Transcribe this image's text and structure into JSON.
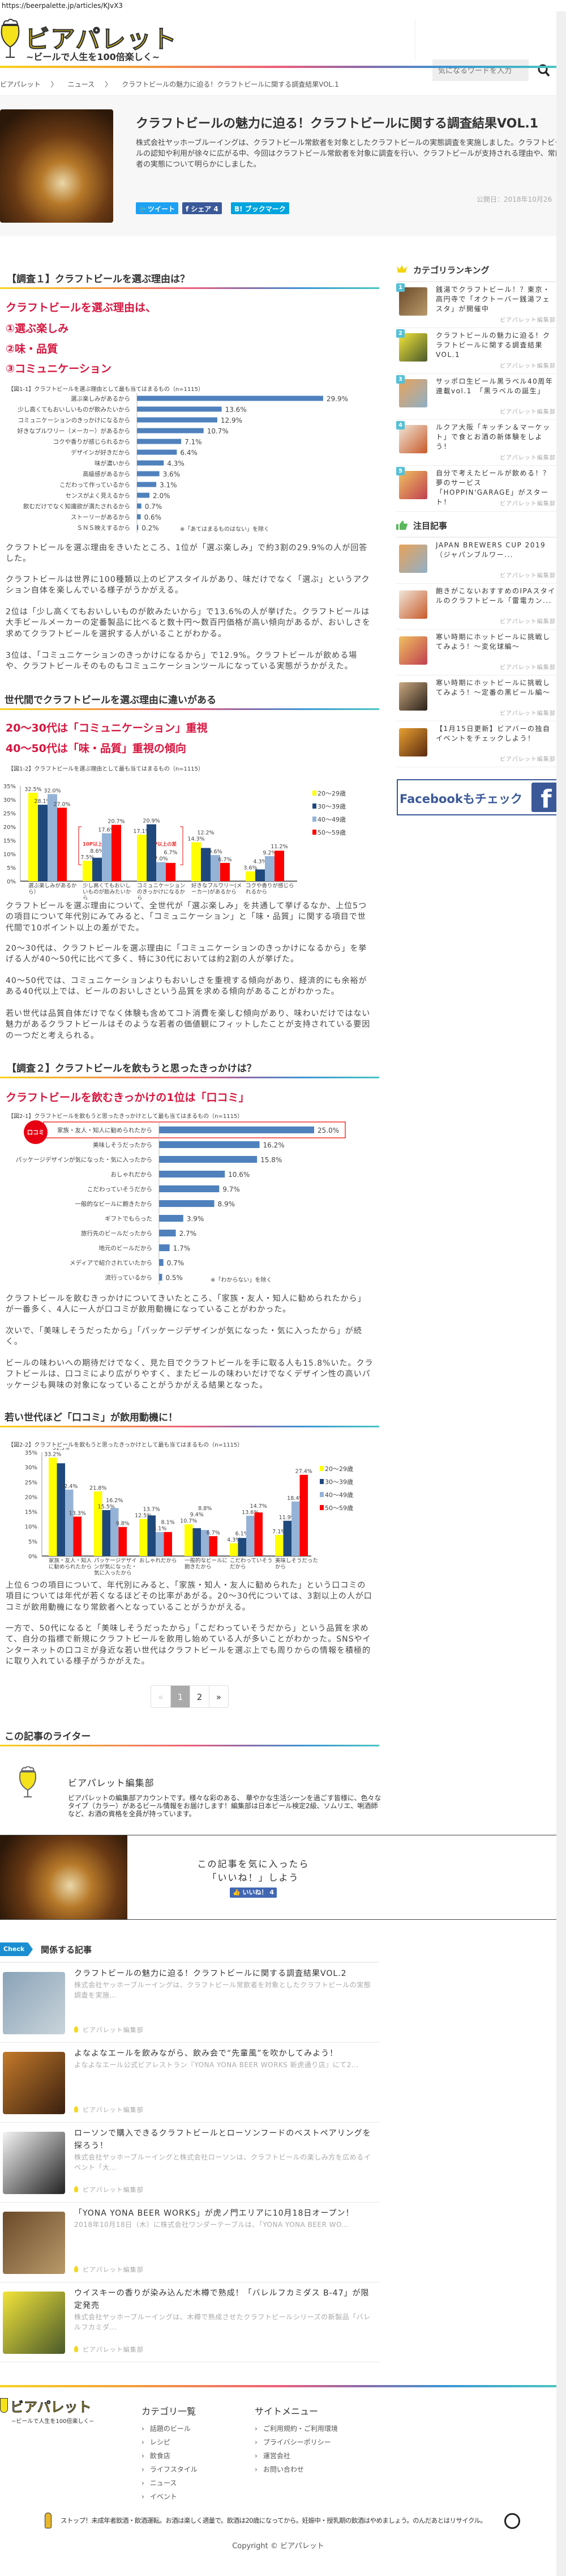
{
  "browser": {
    "url": "https://beerpalette.jp/articles/KJvX3"
  },
  "header": {
    "logo_text": "ビアパレット",
    "tagline": "~ビールで人生を100倍楽しく~",
    "search_placeholder": "気になるワードを入力",
    "search_icon": "search-icon"
  },
  "breadcrumb": [
    "ビアパレット",
    "〉",
    "ニュース",
    "〉",
    "クラフトビールの魅力に迫る！クラフトビールに関する調査結果VOL.1"
  ],
  "article": {
    "title": "クラフトビールの魅力に迫る！クラフトビールに関する調査結果VOL.1",
    "lede": "株式会社ヤッホーブルーイングは、クラフトビール常飲者を対象としたクラフトビールの実態調査を実施しました。クラフトビールの認知や利用が徐々に広がる中、今回はクラフトビール常飲者を対象に調査を行い、クラフトビールが支持される理由や、常飲者の実態について明らかにしました。",
    "date": "公開日：2018年10月26",
    "share": {
      "tweet": "ツイート",
      "facebook": "シェア 4",
      "hatena": "B! ブックマーク"
    },
    "s1": {
      "heading": "【調査１】クラフトビールを選ぶ理由は？",
      "lead": "クラフトビールを選ぶ理由は、",
      "points": [
        "①選ぶ楽しみ",
        "②味・品質",
        "③コミュニケーション"
      ],
      "paras": [
        "クラフトビールを選ぶ理由をきいたところ、1位が「選ぶ楽しみ」で約3割の29.9%の人が回答した。",
        "クラフトビールは世界に100種類以上のビアスタイルがあり、味だけでなく「選ぶ」というアクション自体を楽しんでいる様子がうかがえる。",
        "2位は「少し高くてもおいしいものが飲みたいから」で13.6%の人が挙げた。クラフトビールは大手ビールメーカーの定番製品に比べると数十円～数百円価格が高い傾向があるが、おいしさを求めてクラフトビールを選択する人がいることがわかる。",
        "3位は、「コミュニケーションのきっかけになるから」で12.9%。クラフトビールが飲める場や、クラフトビールそのものもコミュニケーションツールになっている実態がうかがえた。"
      ]
    },
    "s1b": {
      "heading": "世代間でクラフトビールを選ぶ理由に違いがある",
      "lead": [
        "20～30代は「コミュニケーション」重視",
        "40～50代は「味・品質」重視の傾向"
      ],
      "paras": [
        "クラフトビールを選ぶ理由について、全世代が「選ぶ楽しみ」を共通して挙げるなか、上位5つの項目について年代別にみてみると、「コミュニケーション」と「味・品質」に関する項目で世代間で10ポイント以上の差がでた。",
        "20～30代は、クラフトビールを選ぶ理由に「コミュニケーションのきっかけになるから」を挙げる人が40～50代に比べて多く、特に30代においては約2割の人が挙げた。",
        "40～50代では、コミュニケーションよりもおいしさを重視する傾向があり、経済的にも余裕がある40代以上では、ビールのおいしさという品質を求める傾向があることがわかった。",
        "若い世代は品質自体だけでなく体験も含めてコト消費を楽しむ傾向があり、味わいだけではない魅力があるクラフトビールはそのような若者の価値観にフィットしたことが支持されている要因の一つだと考えられる。"
      ]
    },
    "s2": {
      "heading": "【調査２】クラフトビールを飲もうと思ったきっかけは？",
      "lead": "クラフトビールを飲むきっかけの1位は「口コミ」",
      "paras": [
        "クラフトビールを飲むきっかけについてきいたところ、「家族・友人・知人に勧められたから」が一番多く、4人に一人が口コミが飲用動機になっていることがわかった。",
        "次いで、「美味しそうだったから」「パッケージデザインが気になった・気に入ったから」が続く。",
        "ビールの味わいへの期待だけでなく、見た目でクラフトビールを手に取る人も15.8%いた。クラフトビールは、口コミにより広がりやすく、またビールの味わいだけでなくデザイン性の高いパッケージも興味の対象になっていることがうかがえる結果となった。"
      ]
    },
    "s2b": {
      "heading": "若い世代ほど「口コミ」が飲用動機に！",
      "paras": [
        "上位６つの項目について、年代別にみると、「家族・知人・友人に勧められた」という口コミの項目については年代が若くなるほどその比率があがる。20～30代については、3割以上の人が口コミが飲用動機になり常飲者へとなっていることがうかがえる。",
        "一方で、50代になると「美味しそうだったから」「こだわっていそうだから」という品質を求めて、自分の指標で新規にクラフトビールを飲用し始めている人が多いことがわかった。SNSやインターネットの口コミが身近な若い世代はクラフトビールを選ぶ上でも周りからの情報を積極的に取り入れている様子がうかがえた。"
      ]
    }
  },
  "chart_data": [
    {
      "type": "bar",
      "orientation": "horizontal",
      "title": "【図1-1】クラフトビールを選ぶ理由として最も当てはまるもの（n=1115）",
      "note": "※「あてはまるものはない」を除く",
      "color": "#4f81bd",
      "categories": [
        "選ぶ楽しみがあるから",
        "少し高くてもおいしいものが飲みたいから",
        "コミュニケーションのきっかけになるから",
        "好きなブルワリー（メーカー）があるから",
        "コクや香りが感じられるから",
        "デザインが好きだから",
        "味が濃いから",
        "高級感があるから",
        "こだわって作っているから",
        "センスがよく見えるから",
        "飲むだけでなく知識欲が満たされるから",
        "ストーリーがあるから",
        "ＳＮＳ映えするから"
      ],
      "values": [
        29.9,
        13.6,
        12.9,
        10.7,
        7.1,
        6.4,
        4.3,
        3.6,
        3.1,
        2.0,
        0.7,
        0.6,
        0.2
      ],
      "unit": "%"
    },
    {
      "type": "bar",
      "orientation": "vertical",
      "title": "【図1-2】クラフトビールを選ぶ理由として最も当てはまるもの（n=1115）",
      "ylim": [
        0,
        35
      ],
      "yticks": [
        "0%",
        "5%",
        "10%",
        "15%",
        "20%",
        "25%",
        "30%",
        "35%"
      ],
      "legend": "right",
      "categories": [
        "選ぶ楽しみがあるから）",
        "少し高くてもおいしいものが飲みたいから",
        "コミュニケーションのきっかけになるから",
        "好きなブルワリー(メーカー)があるから",
        "コクや香りが感じられるから"
      ],
      "series": [
        {
          "name": "20～29歳",
          "color": "#ffff00",
          "values": [
            32.5,
            7.5,
            17.1,
            14.3,
            3.6
          ]
        },
        {
          "name": "30～39歳",
          "color": "#1f497d",
          "values": [
            28.1,
            8.6,
            20.9,
            12.2,
            4.3
          ]
        },
        {
          "name": "40～49歳",
          "color": "#95b3d7",
          "values": [
            32.0,
            17.6,
            7.0,
            9.6,
            9.2
          ]
        },
        {
          "name": "50～59歳",
          "color": "#ff0000",
          "values": [
            27.0,
            20.7,
            6.7,
            6.7,
            11.2
          ]
        }
      ],
      "annotations": [
        "10P以上の差",
        "10P以上の差"
      ]
    },
    {
      "type": "bar",
      "orientation": "horizontal",
      "title": "【図2-1】クラフトビールを飲もうと思ったきっかけとして最も当てはまるもの（n=1115）",
      "note": "※「わからない」を除く",
      "highlight_label": "口コミ",
      "color": "#4f81bd",
      "categories": [
        "家族・友人・知人に勧められたから",
        "美味しそうだったから",
        "パッケージデザインが気になった・気に入ったから",
        "おしゃれだから",
        "こだわっていそうだから",
        "一般的なビールに飽きたから",
        "ギフトでもらった",
        "旅行先のビールだったから",
        "地元のビールだから",
        "メディアで紹介されていたから",
        "流行っているから"
      ],
      "values": [
        25.0,
        16.2,
        15.8,
        10.6,
        9.7,
        8.9,
        3.9,
        2.7,
        1.7,
        0.7,
        0.5
      ],
      "unit": "%"
    },
    {
      "type": "bar",
      "orientation": "vertical",
      "title": "【図2-2】クラフトビールを飲もうと思ったきっかけとして最も当てはまるもの（n=1115）",
      "ylim": [
        0,
        35
      ],
      "yticks": [
        "0%",
        "5%",
        "10%",
        "15%",
        "20%",
        "25%",
        "30%",
        "35%"
      ],
      "legend": "right",
      "categories": [
        "家族・友人・知人に勧められたから",
        "パッケージデザインが気になった・気に入ったから",
        "おしゃれだから",
        "一般的なビールに飽きたから",
        "こだわっていそうだから",
        "美味しそうだったから"
      ],
      "series": [
        {
          "name": "20～29歳",
          "color": "#ffff00",
          "values": [
            33.2,
            21.8,
            12.5,
            10.7,
            4.3,
            7.1
          ]
        },
        {
          "name": "30～39歳",
          "color": "#1f497d",
          "values": [
            31.3,
            15.5,
            13.7,
            9.4,
            6.1,
            11.9
          ]
        },
        {
          "name": "40～49歳",
          "color": "#95b3d7",
          "values": [
            22.4,
            16.2,
            8.1,
            8.8,
            13.6,
            18.4
          ]
        },
        {
          "name": "50～59歳",
          "color": "#ff0000",
          "values": [
            13.3,
            9.8,
            8.1,
            6.7,
            14.7,
            27.4
          ]
        }
      ]
    }
  ],
  "pagination": {
    "prev": "«",
    "pages": [
      "1",
      "2"
    ],
    "current": "1",
    "next": "»"
  },
  "writer": {
    "heading": "この記事のライター",
    "name": "ビアパレット編集部",
    "bio": "ビアパレットの編集部アカウントです。様々な彩のある、 華やかな生活シーンを過ごす皆様に、色々なタイプ（カラー）があるビール情報をお届けします！編集部は日本ビール検定2級、ソムリエ、唎酒師など、お酒の資格を全員が持っています。"
  },
  "like_box": {
    "line1": "この記事を気に入ったら",
    "line2": "「いいね！」しよう",
    "button": "いいね！ 4"
  },
  "related": {
    "badge": "Check",
    "heading": "関係する記事",
    "items": [
      {
        "title": "クラフトビールの魅力に迫る！クラフトビールに関する調査結果VOL.2",
        "desc": "株式会社ヤッホーブルーイングは、クラフトビール常飲者を対象としたクラフトビールの実態調査を実施...",
        "author": "ビアパレット編集部"
      },
      {
        "title": "よなよなエールを飲みながら、飲み会で“先輩風”を吹かしてみよう！",
        "desc": "よなよなエール公式ビアレストラン『YONA YONA BEER WORKS 新虎通り店』にて2...",
        "author": "ビアパレット編集部"
      },
      {
        "title": "ローソンで購入できるクラフトビールとローソンフードのベストペアリングを探ろう！",
        "desc": "株式会社ヤッホーブルーイングと株式会社ローソンは、クラフトビールの楽しみ方を広めるイベント「大...",
        "author": "ビアパレット編集部"
      },
      {
        "title": "「YONA YONA BEER WORKS」が虎ノ門エリアに10月18日オープン！",
        "desc": "2018年10月18日（木）に株式会社ワンダーテーブルは、「YONA YONA BEER WO...",
        "author": "ビアパレット編集部"
      },
      {
        "title": "ウイスキーの香りが染み込んだ木樽で熟成！「バレルフカミダス B-47」が限定発売",
        "desc": "株式会社ヤッホーブルーイングは、木樽で熟成させたクラフトビールシリーズの新製品「バレルフカミダ...",
        "author": "ビアパレット編集部"
      }
    ]
  },
  "sidebar": {
    "ranking_heading": "カテゴリランキング",
    "ranking": [
      {
        "rank": "1",
        "title": "銭湯でクラフトビール！？東京・高円寺で「オクトーバー銭湯フェスタ」が開催中",
        "author": "ビアパレット編集部"
      },
      {
        "rank": "2",
        "title": "クラフトビールの魅力に迫る！クラフトビールに関する調査結果VOL.1",
        "author": "ビアパレット編集部"
      },
      {
        "rank": "3",
        "title": "サッポロ生ビール黒ラベル40周年連載vol.1　「黒ラベルの誕生」",
        "author": "ビアパレット編集部"
      },
      {
        "rank": "4",
        "title": "ルクア大阪「キッチン＆マーケット」で食とお酒の新体験をしよう！",
        "author": "ビアパレット編集部"
      },
      {
        "rank": "5",
        "title": "自分で考えたビールが飲める！？夢のサービス「HOPPIN'GARAGE」がスタート！",
        "author": "ビアパレット編集部"
      }
    ],
    "featured_heading": "注目記事",
    "featured": [
      {
        "title": "JAPAN BREWERS CUP 2019（ジャパンブルワー...",
        "author": "ビアパレット編集部"
      },
      {
        "title": "飽きがこないおすすめのIPAスタイルのクラフトビール「雷電カン...",
        "author": "ビアパレット編集部"
      },
      {
        "title": "寒い時期にホットビールに挑戦してみよう！～変化球編～",
        "author": "ビアパレット編集部"
      },
      {
        "title": "寒い時期にホットビールに挑戦してみよう！～定番の黒ビール編～",
        "author": "ビアパレット編集部"
      },
      {
        "title": "【1月15日更新】ビアバーの独自イベントをチェックしよう！",
        "author": "ビアパレット編集部"
      }
    ],
    "facebook_banner": "Facebookもチェック"
  },
  "footer": {
    "logo_text": "ビアパレット",
    "tagline": "~ビールで人生を100倍楽しく~",
    "categories_heading": "カテゴリ一覧",
    "categories": [
      "話題のビール",
      "レシピ",
      "飲食店",
      "ライフスタイル",
      "ニュース",
      "イベント"
    ],
    "menu_heading": "サイトメニュー",
    "menu": [
      "ご利用規約・ご利用環境",
      "プライバシーポリシー",
      "運営会社",
      "お問い合わせ"
    ],
    "warning": "ストップ！未成年者飲酒・飲酒運転。お酒は楽しく適量で。飲酒は20歳になってから。妊娠中・授乳期の飲酒はやめましょう。のんだあとはリサイクル。",
    "copyright": "Copyright © ビアパレット"
  },
  "colors": {
    "accent_red": "#d6163f",
    "bar_blue": "#4f81bd",
    "twitter": "#1da1f2",
    "facebook": "#3b5998",
    "hatena": "#00a4de",
    "check_badge": "#1a8ed1",
    "rank_badge": "#55c0d6"
  }
}
